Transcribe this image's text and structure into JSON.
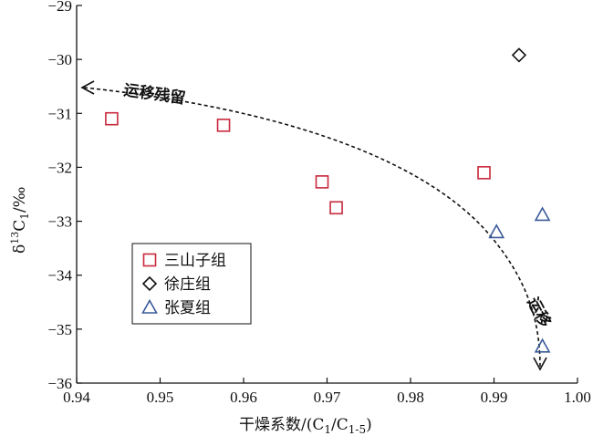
{
  "chart_data": {
    "type": "scatter",
    "xlabel": "干燥系数/(C1/C1-5)",
    "xlabel_parts": {
      "prefix": "干燥系数/(C",
      "sub1": "1",
      "mid": "/C",
      "sub2": "1-5",
      "suffix": ")"
    },
    "ylabel": "δ13C1/‰",
    "ylabel_parts": {
      "delta": "δ",
      "sup": "13",
      "c": "C",
      "sub": "1",
      "unit": "/‰"
    },
    "xlim": [
      0.94,
      1.0
    ],
    "ylim": [
      -36,
      -29
    ],
    "xticks": [
      0.94,
      0.95,
      0.96,
      0.97,
      0.98,
      0.99,
      1.0
    ],
    "xtick_labels": [
      "0.94",
      "0.95",
      "0.96",
      "0.97",
      "0.98",
      "0.99",
      "1.00"
    ],
    "yticks": [
      -29,
      -30,
      -31,
      -32,
      -33,
      -34,
      -35,
      -36
    ],
    "ytick_labels": [
      "−29",
      "−30",
      "−31",
      "−32",
      "−33",
      "−34",
      "−35",
      "−36"
    ],
    "grid": false,
    "legend_position": "lower-left",
    "series": [
      {
        "name": "三山子组",
        "marker": "square",
        "color": "#c8283c",
        "x": [
          0.9442,
          0.9576,
          0.9694,
          0.9711,
          0.9888
        ],
        "y": [
          -31.1,
          -31.22,
          -32.27,
          -32.75,
          -32.1
        ]
      },
      {
        "name": "徐庄组",
        "marker": "diamond",
        "color": "#111111",
        "x": [
          0.993
        ],
        "y": [
          -29.92
        ]
      },
      {
        "name": "张夏组",
        "marker": "triangle",
        "color": "#3a5a9a",
        "x": [
          0.9903,
          0.9958,
          0.9958
        ],
        "y": [
          -33.2,
          -32.88,
          -35.32
        ]
      }
    ],
    "annotations": [
      {
        "text": "运移残留"
      },
      {
        "text": "运移"
      }
    ]
  }
}
